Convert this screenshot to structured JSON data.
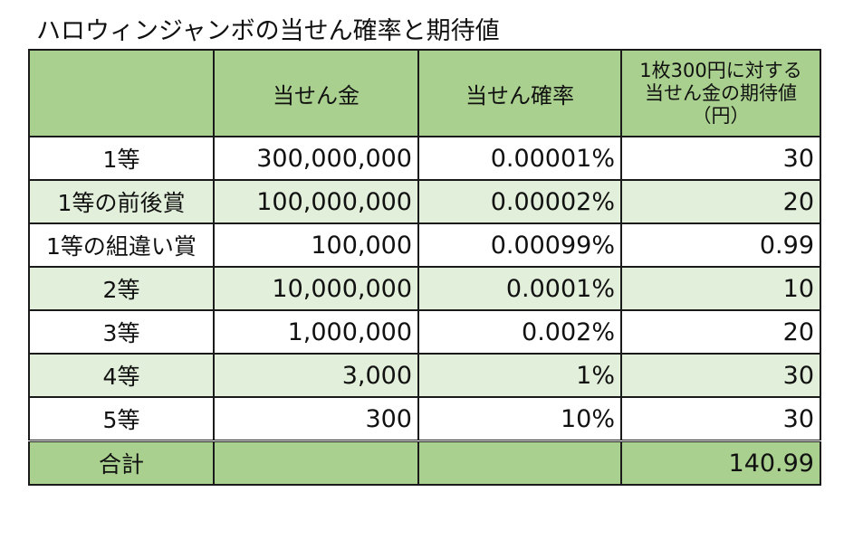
{
  "title": "ハロウィンジャンボの当せん確率と期待値",
  "table": {
    "headers": {
      "prize_name": "",
      "prize_amount": "当せん金",
      "probability": "当せん確率",
      "expected_value_lines": [
        "1枚300円に対する",
        "当せん金の期待値",
        "（円）"
      ]
    },
    "rows": [
      {
        "name": "1等",
        "amount": "300,000,000",
        "probability": "0.00001%",
        "expected": "30"
      },
      {
        "name": "1等の前後賞",
        "amount": "100,000,000",
        "probability": "0.00002%",
        "expected": "20"
      },
      {
        "name": "1等の組違い賞",
        "amount": "100,000",
        "probability": "0.00099%",
        "expected": "0.99"
      },
      {
        "name": "2等",
        "amount": "10,000,000",
        "probability": "0.0001%",
        "expected": "10"
      },
      {
        "name": "3等",
        "amount": "1,000,000",
        "probability": "0.002%",
        "expected": "20"
      },
      {
        "name": "4等",
        "amount": "3,000",
        "probability": "1%",
        "expected": "30"
      },
      {
        "name": "5等",
        "amount": "300",
        "probability": "10%",
        "expected": "30"
      }
    ],
    "total": {
      "name": "合計",
      "amount": "",
      "probability": "",
      "expected": "140.99"
    }
  },
  "colors": {
    "header_fill": "#a9d08e",
    "band_fill": "#e2efda",
    "border": "#1a1a1a"
  }
}
